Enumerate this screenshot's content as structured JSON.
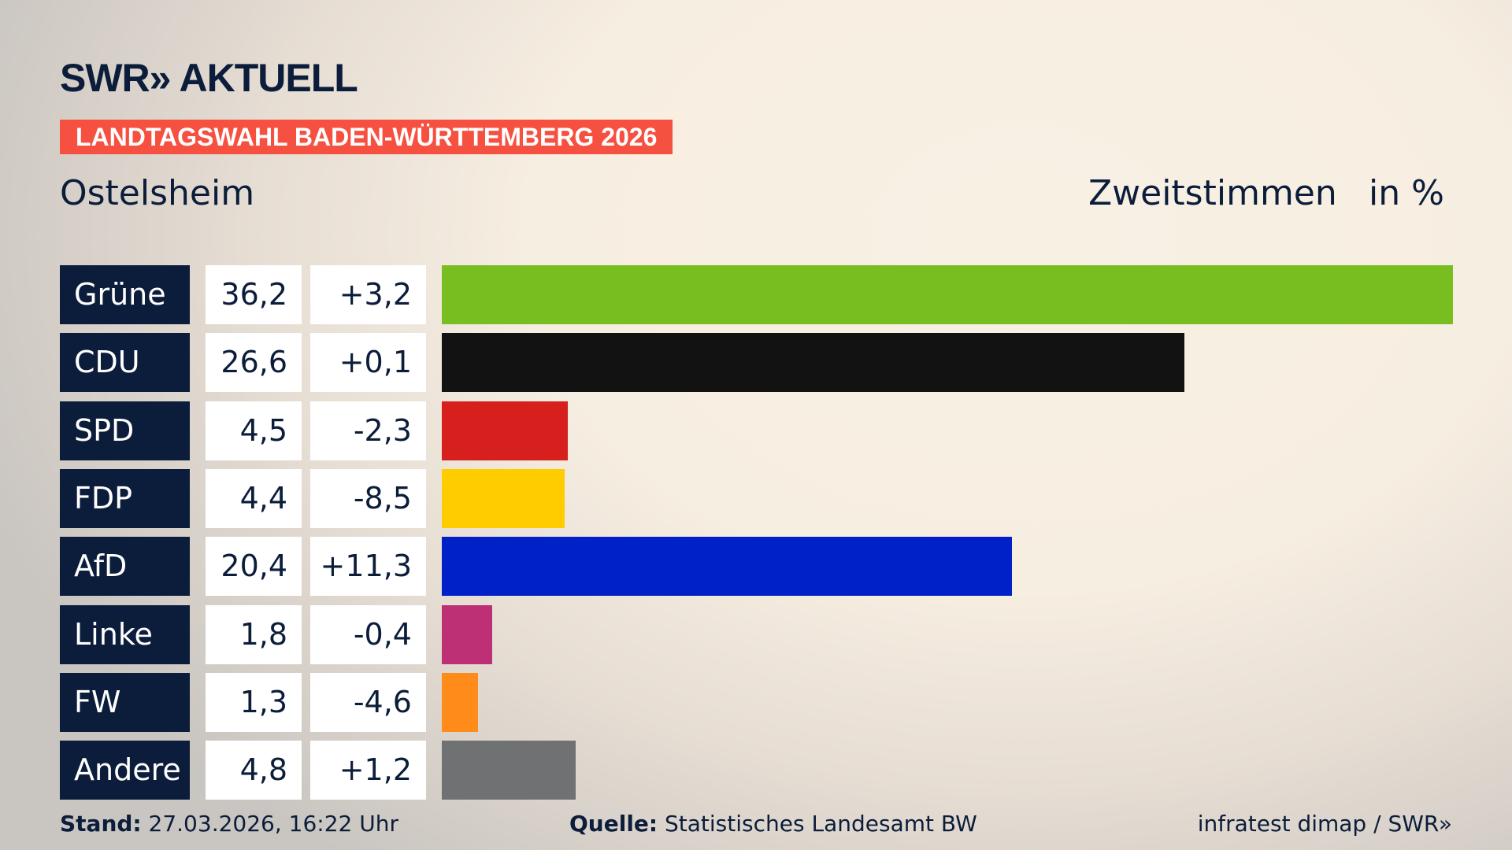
{
  "header": {
    "logo": "SWR» AKTUELL",
    "banner": "LANDTAGSWAHL BADEN-WÜRTTEMBERG 2026",
    "region": "Ostelsheim",
    "measure": "Zweitstimmen",
    "unit": "in %"
  },
  "chart_data": {
    "type": "bar",
    "orientation": "horizontal",
    "categories": [
      "Grüne",
      "CDU",
      "SPD",
      "FDP",
      "AfD",
      "Linke",
      "FW",
      "Andere"
    ],
    "values": [
      36.2,
      26.6,
      4.5,
      4.4,
      20.4,
      1.8,
      1.3,
      4.8
    ],
    "value_labels": [
      "36,2",
      "26,6",
      "4,5",
      "4,4",
      "20,4",
      "1,8",
      "1,3",
      "4,8"
    ],
    "diff_labels": [
      "+3,2",
      "+0,1",
      "-2,3",
      "-8,5",
      "+11,3",
      "-0,4",
      "-4,6",
      "+1,2"
    ],
    "colors": [
      "#78be20",
      "#121212",
      "#d71f1d",
      "#ffcc00",
      "#0021c8",
      "#be3075",
      "#ff8c1a",
      "#707172"
    ],
    "grid": false
  },
  "footer": {
    "stand_label": "Stand:",
    "stand_value": "27.03.2026, 16:22 Uhr",
    "source_label": "Quelle:",
    "source_value": "Statistisches Landesamt BW",
    "credit": "infratest dimap / SWR»"
  }
}
